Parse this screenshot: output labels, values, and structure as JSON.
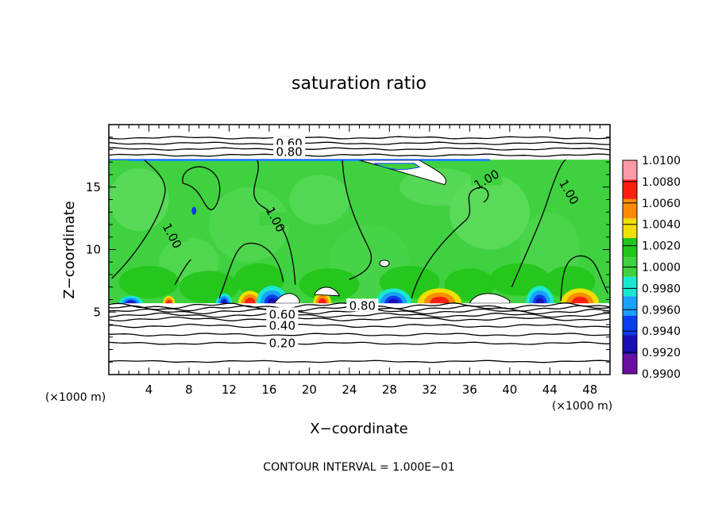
{
  "chart_data": {
    "type": "heatmap",
    "title": "saturation ratio",
    "xlabel": "X−coordinate",
    "ylabel": "Z−coordinate",
    "x_unit": "(×1000 m)",
    "z_unit": "(×1000 m)",
    "footer": "CONTOUR INTERVAL = 1.000E−01",
    "xlim": [
      0,
      50
    ],
    "ylim": [
      0,
      20
    ],
    "x_ticks": [
      4,
      8,
      12,
      16,
      20,
      24,
      28,
      32,
      36,
      40,
      44,
      48
    ],
    "y_ticks": [
      5,
      10,
      15
    ],
    "colorbar": {
      "levels": [
        "0.9900",
        "0.9920",
        "0.9940",
        "0.9960",
        "0.9980",
        "1.0000",
        "1.0020",
        "1.0040",
        "1.0060",
        "1.0080",
        "1.0100"
      ],
      "colors": [
        "#6a0fa0",
        "#1a0fb0",
        "#0a3cf0",
        "#1aa0ff",
        "#18e8d0",
        "#3fd13f",
        "#22c51a",
        "#f0e000",
        "#ff8c00",
        "#ff2010",
        "#ff9aa8"
      ],
      "legend_placement": "right"
    },
    "contour_labels": [
      "0.60",
      "0.80",
      "1.00",
      "1.00",
      "1.00",
      "1.00",
      "0.80",
      "0.60",
      "0.40",
      "0.20"
    ],
    "contour_levels_lower": [
      0.2,
      0.4,
      0.6,
      0.8
    ],
    "contour_levels_upper": [
      0.6,
      0.8
    ],
    "cloud_layer_z": [
      5.7,
      17.2
    ],
    "grid": false
  }
}
